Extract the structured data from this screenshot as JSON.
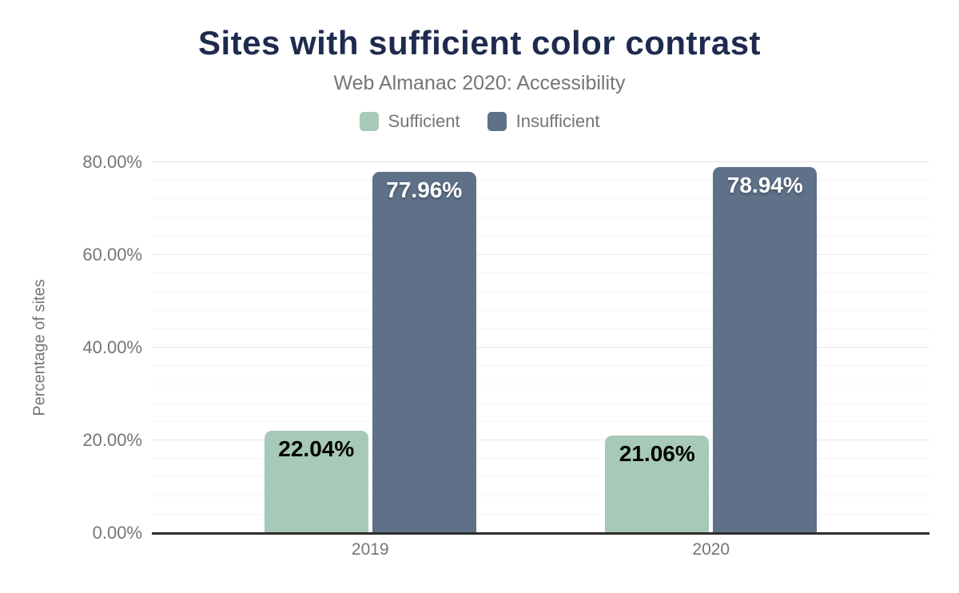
{
  "header": {
    "title": "Sites with sufficient color contrast",
    "subtitle": "Web Almanac 2020: Accessibility"
  },
  "legend": [
    {
      "label": "Sufficient",
      "color": "#a6c9b8"
    },
    {
      "label": "Insufficient",
      "color": "#5e7189"
    }
  ],
  "colors": {
    "title_text": "#1e2b4e",
    "muted_text": "#757575",
    "axis_line": "#2d2d2d",
    "sufficient_bar": "#a6c9b8",
    "insufficient_bar": "#5e7189"
  },
  "chart_data": {
    "type": "bar",
    "title": "Sites with sufficient color contrast",
    "subtitle": "Web Almanac 2020: Accessibility",
    "categories": [
      "2019",
      "2020"
    ],
    "series": [
      {
        "name": "Sufficient",
        "color": "#a6c9b8",
        "values": [
          22.04,
          21.06
        ],
        "labels": [
          "22.04%",
          "21.06%"
        ],
        "label_color": "#000000"
      },
      {
        "name": "Insufficient",
        "color": "#5e7189",
        "values": [
          77.96,
          78.94
        ],
        "labels": [
          "77.96%",
          "78.94%"
        ],
        "label_color": "#ffffff"
      }
    ],
    "xlabel": "",
    "ylabel": "Percentage of sites",
    "ylim": [
      0,
      80
    ],
    "y_ticks": [
      {
        "value": 0,
        "label": "0.00%"
      },
      {
        "value": 20,
        "label": "20.00%"
      },
      {
        "value": 40,
        "label": "40.00%"
      },
      {
        "value": 60,
        "label": "60.00%"
      },
      {
        "value": 80,
        "label": "80.00%"
      }
    ],
    "grid": {
      "minor_step": 4,
      "major_step": 20,
      "visible": true
    },
    "legend_position": "top"
  }
}
